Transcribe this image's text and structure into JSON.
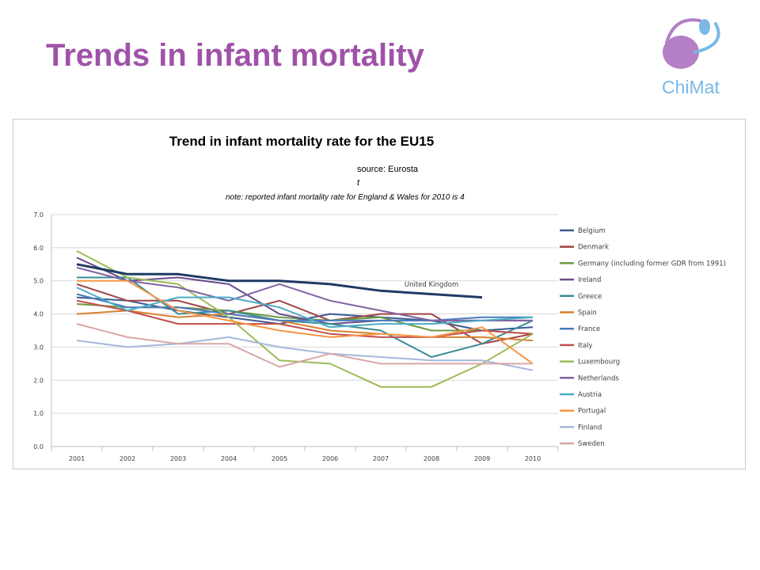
{
  "slide": {
    "title": "Trends in infant mortality",
    "logo_text": "ChiMat",
    "colors": {
      "title": "#a052a8",
      "logo_purple": "#b47fc4",
      "logo_blue": "#7ab8e6"
    }
  },
  "chart_data": {
    "type": "line",
    "title": "Trend in infant mortality rate for the EU15",
    "subtitle_lines": [
      "source: Eurosta",
      "t"
    ],
    "note": "note: reported infant mortality rate for England & Wales for 2010 is 4",
    "x": [
      "2001",
      "2002",
      "2003",
      "2004",
      "2005",
      "2006",
      "2007",
      "2008",
      "2009",
      "2010"
    ],
    "ylim": [
      0,
      7
    ],
    "yticks": [
      "0.0",
      "1.0",
      "2.0",
      "3.0",
      "4.0",
      "5.0",
      "6.0",
      "7.0"
    ],
    "grid": "horizontal",
    "legend_position": "right",
    "annotations": [
      {
        "text": "United Kingdom",
        "x": "2008",
        "y": 4.9
      }
    ],
    "series": [
      {
        "name": "Belgium",
        "color": "#3b5b92",
        "values": [
          4.5,
          4.4,
          4.1,
          3.9,
          3.7,
          4.0,
          3.9,
          3.8,
          3.5,
          3.6
        ]
      },
      {
        "name": "Denmark",
        "color": "#a14545",
        "values": [
          4.9,
          4.4,
          4.4,
          4.0,
          4.4,
          3.8,
          4.0,
          4.0,
          3.1,
          3.4
        ]
      },
      {
        "name": "Germany (including  former GDR from 1991)",
        "color": "#6e9a3f",
        "values": [
          4.3,
          4.2,
          4.2,
          4.1,
          3.9,
          3.8,
          3.9,
          3.5,
          3.5,
          3.4
        ]
      },
      {
        "name": "Ireland",
        "color": "#6a4d8a",
        "values": [
          5.7,
          5.0,
          5.1,
          4.9,
          4.0,
          3.7,
          3.8,
          3.8,
          3.8,
          3.8
        ]
      },
      {
        "name": "Greece",
        "color": "#3b8c96",
        "values": [
          5.1,
          5.1,
          4.0,
          4.1,
          3.8,
          3.7,
          3.5,
          2.7,
          3.1,
          3.8
        ]
      },
      {
        "name": "Spain",
        "color": "#d9812e",
        "values": [
          4.0,
          4.1,
          3.9,
          4.0,
          3.8,
          3.5,
          3.4,
          3.3,
          3.3,
          3.2
        ]
      },
      {
        "name": "France",
        "color": "#4a7dbd",
        "values": [
          4.6,
          4.2,
          4.2,
          4.0,
          3.8,
          3.8,
          3.8,
          3.8,
          3.9,
          3.9
        ]
      },
      {
        "name": "Italy",
        "color": "#c0504d",
        "values": [
          4.4,
          4.1,
          3.7,
          3.7,
          3.7,
          3.4,
          3.3,
          3.3,
          3.5,
          3.4
        ]
      },
      {
        "name": "Luxembourg",
        "color": "#9bbb59",
        "values": [
          5.9,
          5.1,
          4.9,
          3.9,
          2.6,
          2.5,
          1.8,
          1.8,
          2.5,
          3.4
        ]
      },
      {
        "name": "Netherlands",
        "color": "#8064a2",
        "values": [
          5.4,
          5.0,
          4.8,
          4.4,
          4.9,
          4.4,
          4.1,
          3.8,
          3.8,
          3.8
        ]
      },
      {
        "name": "Austria",
        "color": "#4bacc6",
        "values": [
          4.8,
          4.1,
          4.5,
          4.5,
          4.2,
          3.6,
          3.7,
          3.7,
          3.8,
          3.9
        ]
      },
      {
        "name": "Portugal",
        "color": "#f79646",
        "values": [
          5.0,
          5.0,
          4.1,
          3.8,
          3.5,
          3.3,
          3.4,
          3.3,
          3.6,
          2.5
        ]
      },
      {
        "name": "Finland",
        "color": "#a6b8d9",
        "values": [
          3.2,
          3.0,
          3.1,
          3.3,
          3.0,
          2.8,
          2.7,
          2.6,
          2.6,
          2.3
        ]
      },
      {
        "name": "Sweden",
        "color": "#d9a6a6",
        "values": [
          3.7,
          3.3,
          3.1,
          3.1,
          2.4,
          2.8,
          2.5,
          2.5,
          2.5,
          2.5
        ]
      },
      {
        "name": "United Kingdom",
        "color": "#1f3a64",
        "legend": false,
        "values": [
          5.5,
          5.2,
          5.2,
          5.0,
          5.0,
          4.9,
          4.7,
          4.6,
          4.5,
          null
        ]
      }
    ]
  }
}
